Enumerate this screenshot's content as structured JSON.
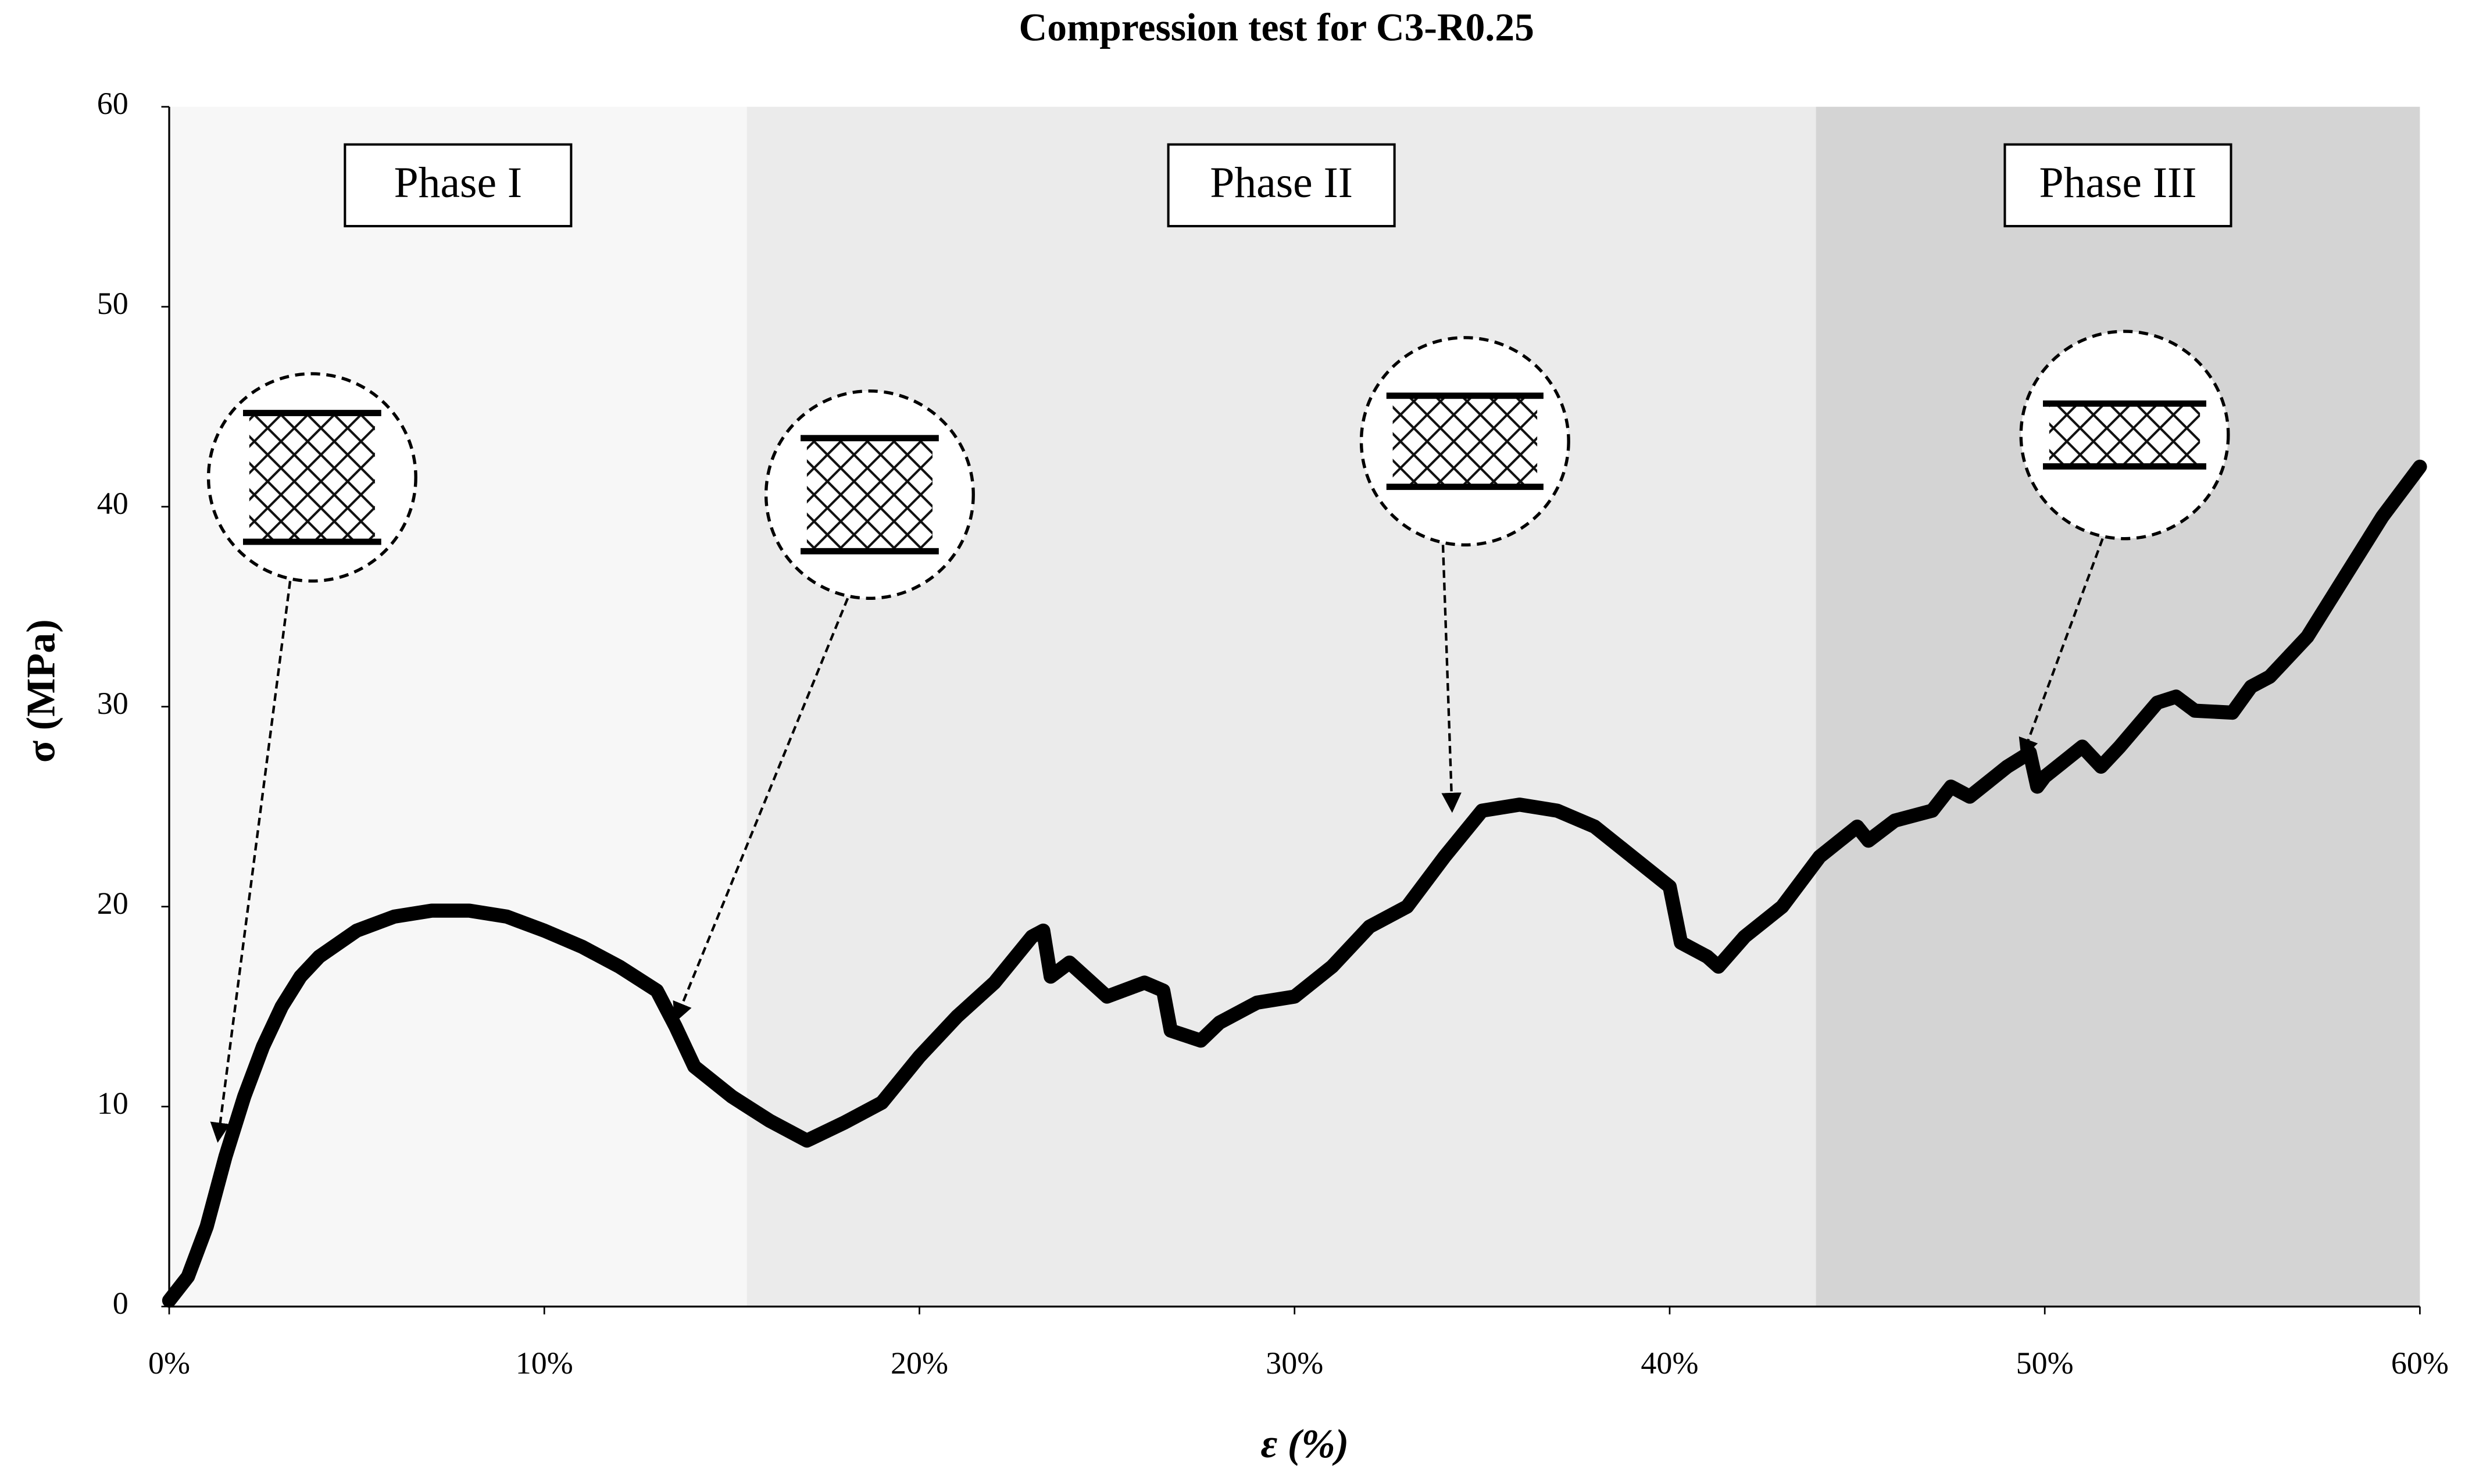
{
  "chart_data": {
    "type": "line",
    "title": "Compression test for C3-R0.25",
    "x_label": "ε (%)",
    "y_label": "σ (MPa)",
    "xlim": [
      0,
      60
    ],
    "ylim": [
      0,
      60
    ],
    "xticks": [
      {
        "value": 0,
        "label": "0%"
      },
      {
        "value": 10,
        "label": "10%"
      },
      {
        "value": 20,
        "label": "20%"
      },
      {
        "value": 30,
        "label": "30%"
      },
      {
        "value": 40,
        "label": "40%"
      },
      {
        "value": 50,
        "label": "50%"
      },
      {
        "value": 60,
        "label": "60%"
      }
    ],
    "yticks": [
      0,
      10,
      20,
      30,
      40,
      50,
      60
    ],
    "phases": [
      {
        "label": "Phase I",
        "start": 0,
        "end": 15.4,
        "color": "#f7f7f7"
      },
      {
        "label": "Phase II",
        "start": 15.4,
        "end": 43.9,
        "color": "#ebebeb"
      },
      {
        "label": "Phase III",
        "start": 43.9,
        "end": 60,
        "color": "#d4d4d4"
      }
    ],
    "series": [
      {
        "color": "#000000",
        "x": [
          0,
          0.5,
          1,
          1.5,
          2,
          2.5,
          3,
          3.5,
          4,
          5,
          6,
          7,
          8,
          9,
          10,
          11,
          12,
          13,
          13.5,
          14,
          15,
          16,
          17,
          18,
          19,
          20,
          21,
          22,
          23,
          23.3,
          23.5,
          24,
          25,
          26,
          26.5,
          26.7,
          27.5,
          28,
          29,
          30,
          31,
          32,
          33,
          34,
          35,
          36,
          37,
          38,
          39,
          40,
          40.3,
          41,
          41.3,
          42,
          43,
          44,
          45,
          45.3,
          46,
          47,
          47.5,
          48,
          49,
          49.6,
          49.8,
          50,
          51,
          51.5,
          52,
          53,
          53.5,
          54,
          55,
          55.5,
          56,
          57,
          58,
          59,
          60
        ],
        "values": [
          0.3,
          1.5,
          4,
          7.5,
          10.5,
          13,
          15,
          16.5,
          17.5,
          18.8,
          19.5,
          19.8,
          19.8,
          19.5,
          18.8,
          18,
          17,
          15.8,
          14,
          12,
          10.5,
          9.3,
          8.3,
          9.2,
          10.2,
          12.5,
          14.5,
          16.2,
          18.5,
          18.8,
          16.5,
          17.2,
          15.5,
          16.2,
          15.8,
          13.8,
          13.3,
          14.2,
          15.2,
          15.5,
          17,
          19,
          20,
          22.5,
          24.8,
          25.1,
          24.8,
          24,
          22.5,
          21,
          18.2,
          17.5,
          17,
          18.5,
          20,
          22.5,
          24,
          23.3,
          24.3,
          24.8,
          26,
          25.5,
          27,
          27.7,
          26,
          26.5,
          28,
          27,
          28,
          30.2,
          30.5,
          29.8,
          29.7,
          31,
          31.5,
          33.5,
          36.5,
          39.5,
          42
        ]
      }
    ]
  }
}
